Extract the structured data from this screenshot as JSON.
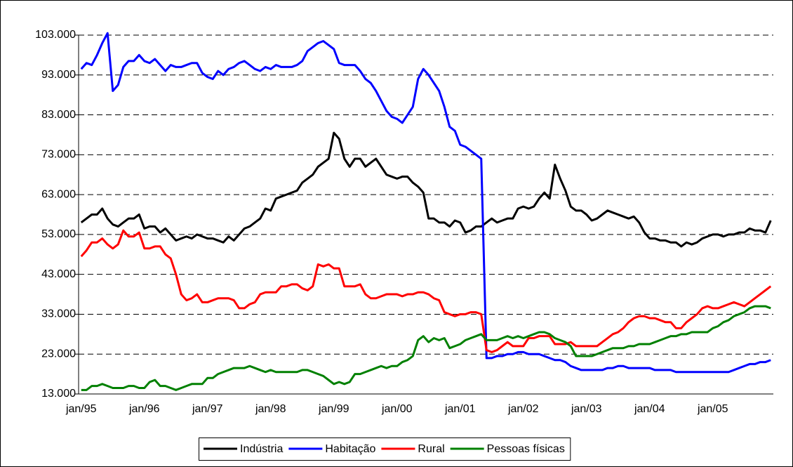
{
  "chart_data": {
    "type": "line",
    "categories": [
      "jan/95",
      null,
      null,
      null,
      null,
      null,
      null,
      null,
      null,
      null,
      null,
      null,
      "jan/96",
      null,
      null,
      null,
      null,
      null,
      null,
      null,
      null,
      null,
      null,
      null,
      "jan/97",
      null,
      null,
      null,
      null,
      null,
      null,
      null,
      null,
      null,
      null,
      null,
      "jan/98",
      null,
      null,
      null,
      null,
      null,
      null,
      null,
      null,
      null,
      null,
      null,
      "jan/99",
      null,
      null,
      null,
      null,
      null,
      null,
      null,
      null,
      null,
      null,
      null,
      "jan/00",
      null,
      null,
      null,
      null,
      null,
      null,
      null,
      null,
      null,
      null,
      null,
      "jan/01",
      null,
      null,
      null,
      null,
      null,
      null,
      null,
      null,
      null,
      null,
      null,
      "jan/02",
      null,
      null,
      null,
      null,
      null,
      null,
      null,
      null,
      null,
      null,
      null,
      "jan/03",
      null,
      null,
      null,
      null,
      null,
      null,
      null,
      null,
      null,
      null,
      null,
      "jan/04",
      null,
      null,
      null,
      null,
      null,
      null,
      null,
      null,
      null,
      null,
      null,
      "jan/05",
      null,
      null,
      null,
      null,
      null,
      null,
      null,
      null,
      null,
      null,
      null
    ],
    "series": [
      {
        "name": "Indústria",
        "color": "#000000",
        "values": [
          56000,
          57000,
          58000,
          58000,
          59500,
          57000,
          55500,
          55000,
          56000,
          57000,
          57000,
          58000,
          54500,
          55000,
          55000,
          53500,
          54500,
          53000,
          51500,
          52000,
          52500,
          52000,
          53000,
          52500,
          52000,
          52000,
          51500,
          51000,
          52500,
          51500,
          53000,
          54500,
          55000,
          56000,
          57000,
          59500,
          59000,
          62000,
          62500,
          63000,
          63500,
          64000,
          66000,
          67000,
          68000,
          70000,
          71000,
          72000,
          78500,
          77000,
          72000,
          70000,
          72000,
          72000,
          70000,
          71000,
          72000,
          70000,
          68000,
          67500,
          67000,
          67500,
          67500,
          66000,
          65000,
          63500,
          57000,
          57000,
          56000,
          56000,
          55000,
          56500,
          56000,
          53500,
          54000,
          55000,
          55000,
          56000,
          57000,
          56000,
          56500,
          57000,
          57000,
          59500,
          60000,
          59500,
          60000,
          62000,
          63500,
          62000,
          70500,
          67000,
          64000,
          60000,
          59000,
          59000,
          58000,
          56500,
          57000,
          58000,
          59000,
          58500,
          58000,
          57500,
          57000,
          57500,
          56000,
          53500,
          52000,
          52000,
          51500,
          51500,
          51000,
          51000,
          50000,
          51000,
          50500,
          51000,
          52000,
          52500,
          53000,
          53000,
          52500,
          53000,
          53000,
          53500,
          53500,
          54500,
          54000,
          54000,
          53500,
          56500
        ]
      },
      {
        "name": "Habitação",
        "color": "#0000ff",
        "values": [
          94500,
          96000,
          95500,
          98000,
          101000,
          103500,
          89000,
          90500,
          95000,
          96500,
          96500,
          98000,
          96500,
          96000,
          97000,
          95500,
          94000,
          95500,
          95000,
          95000,
          95500,
          96000,
          96000,
          93500,
          92500,
          92000,
          94000,
          93000,
          94500,
          95000,
          96000,
          96500,
          95500,
          94500,
          94000,
          95000,
          94500,
          95500,
          95000,
          95000,
          95000,
          95500,
          96500,
          99000,
          100000,
          101000,
          101500,
          100500,
          99500,
          96000,
          95500,
          95500,
          95500,
          94000,
          92000,
          91000,
          89000,
          86500,
          84000,
          82500,
          82000,
          81000,
          83000,
          85000,
          92000,
          94500,
          93000,
          91000,
          89000,
          85000,
          80000,
          79000,
          75500,
          75000,
          74000,
          73000,
          72000,
          22000,
          22000,
          22500,
          22500,
          23000,
          23000,
          23500,
          23500,
          23000,
          23000,
          23000,
          22500,
          22000,
          21500,
          21500,
          21000,
          20000,
          19500,
          19000,
          19000,
          19000,
          19000,
          19000,
          19500,
          19500,
          20000,
          20000,
          19500,
          19500,
          19500,
          19500,
          19500,
          19000,
          19000,
          19000,
          19000,
          18500,
          18500,
          18500,
          18500,
          18500,
          18500,
          18500,
          18500,
          18500,
          18500,
          18500,
          19000,
          19500,
          20000,
          20500,
          20500,
          21000,
          21000,
          21500
        ]
      },
      {
        "name": "Rural",
        "color": "#ff0000",
        "values": [
          47500,
          49000,
          51000,
          51000,
          52000,
          50500,
          49500,
          50500,
          54000,
          52500,
          52500,
          53500,
          49500,
          49500,
          50000,
          50000,
          48000,
          47000,
          43000,
          38000,
          36500,
          37000,
          38000,
          36000,
          36000,
          36500,
          37000,
          37000,
          37000,
          36500,
          34500,
          34500,
          35500,
          36000,
          38000,
          38500,
          38500,
          38500,
          40000,
          40000,
          40500,
          40500,
          39500,
          39000,
          40000,
          45500,
          45000,
          45500,
          44500,
          44500,
          40000,
          40000,
          40000,
          40500,
          38000,
          37000,
          37000,
          37500,
          38000,
          38000,
          38000,
          37500,
          38000,
          38000,
          38500,
          38500,
          38000,
          37000,
          36500,
          33500,
          33000,
          32500,
          33000,
          33000,
          33500,
          33500,
          33000,
          24000,
          23500,
          24000,
          25000,
          26000,
          25000,
          25000,
          25000,
          27000,
          27000,
          27500,
          27500,
          27500,
          25500,
          25500,
          25500,
          26000,
          25000,
          25000,
          25000,
          25000,
          25000,
          26000,
          27000,
          28000,
          28500,
          29500,
          31000,
          32000,
          32500,
          32500,
          32000,
          32000,
          31500,
          31000,
          31000,
          29500,
          29500,
          31000,
          32000,
          33000,
          34500,
          35000,
          34500,
          34500,
          35000,
          35500,
          36000,
          35500,
          35000,
          36000,
          37000,
          38000,
          39000,
          40000
        ]
      },
      {
        "name": "Pessoas físicas",
        "color": "#008000",
        "values": [
          14000,
          14000,
          15000,
          15000,
          15500,
          15000,
          14500,
          14500,
          14500,
          15000,
          15000,
          14500,
          14500,
          16000,
          16500,
          15000,
          15000,
          14500,
          14000,
          14500,
          15000,
          15500,
          15500,
          15500,
          17000,
          17000,
          18000,
          18500,
          19000,
          19500,
          19500,
          19500,
          20000,
          19500,
          19000,
          18500,
          19000,
          18500,
          18500,
          18500,
          18500,
          18500,
          19000,
          19000,
          18500,
          18000,
          17500,
          16500,
          15500,
          16000,
          15500,
          16000,
          18000,
          18000,
          18500,
          19000,
          19500,
          20000,
          19500,
          20000,
          20000,
          21000,
          21500,
          22500,
          26500,
          27500,
          26000,
          27000,
          26500,
          27000,
          24500,
          25000,
          25500,
          26500,
          27000,
          27500,
          28000,
          26500,
          26500,
          26500,
          27000,
          27500,
          27000,
          27500,
          27000,
          27500,
          28000,
          28500,
          28500,
          28000,
          27000,
          26500,
          26000,
          25000,
          22500,
          22500,
          22500,
          22500,
          23000,
          23500,
          24000,
          24500,
          24500,
          24500,
          25000,
          25000,
          25500,
          25500,
          25500,
          26000,
          26500,
          27000,
          27500,
          27500,
          28000,
          28000,
          28500,
          28500,
          28500,
          28500,
          29500,
          30000,
          31000,
          31500,
          32500,
          33000,
          33500,
          34500,
          35000,
          35000,
          35000,
          34500
        ]
      }
    ],
    "ylim": [
      13000,
      103000
    ],
    "yticks": [
      {
        "value": 13000,
        "label": "13.000"
      },
      {
        "value": 23000,
        "label": "23.000"
      },
      {
        "value": 33000,
        "label": "33.000"
      },
      {
        "value": 43000,
        "label": "43.000"
      },
      {
        "value": 53000,
        "label": "53.000"
      },
      {
        "value": 63000,
        "label": "63.000"
      },
      {
        "value": 73000,
        "label": "73.000"
      },
      {
        "value": 83000,
        "label": "83.000"
      },
      {
        "value": 93000,
        "label": "93.000"
      },
      {
        "value": 103000,
        "label": "103.000"
      }
    ],
    "grid": true,
    "legend": "bottom"
  }
}
